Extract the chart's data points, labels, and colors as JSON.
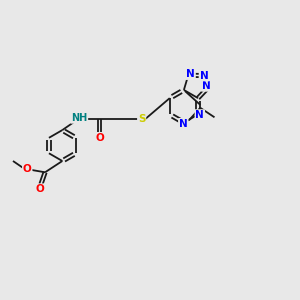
{
  "background_color": "#e8e8e8",
  "bond_color": "#1a1a1a",
  "atom_colors": {
    "N": "#0000ff",
    "O": "#ff0000",
    "S": "#cccc00",
    "H": "#008080",
    "C": "#1a1a1a"
  },
  "figsize": [
    3.0,
    3.0
  ],
  "dpi": 100
}
